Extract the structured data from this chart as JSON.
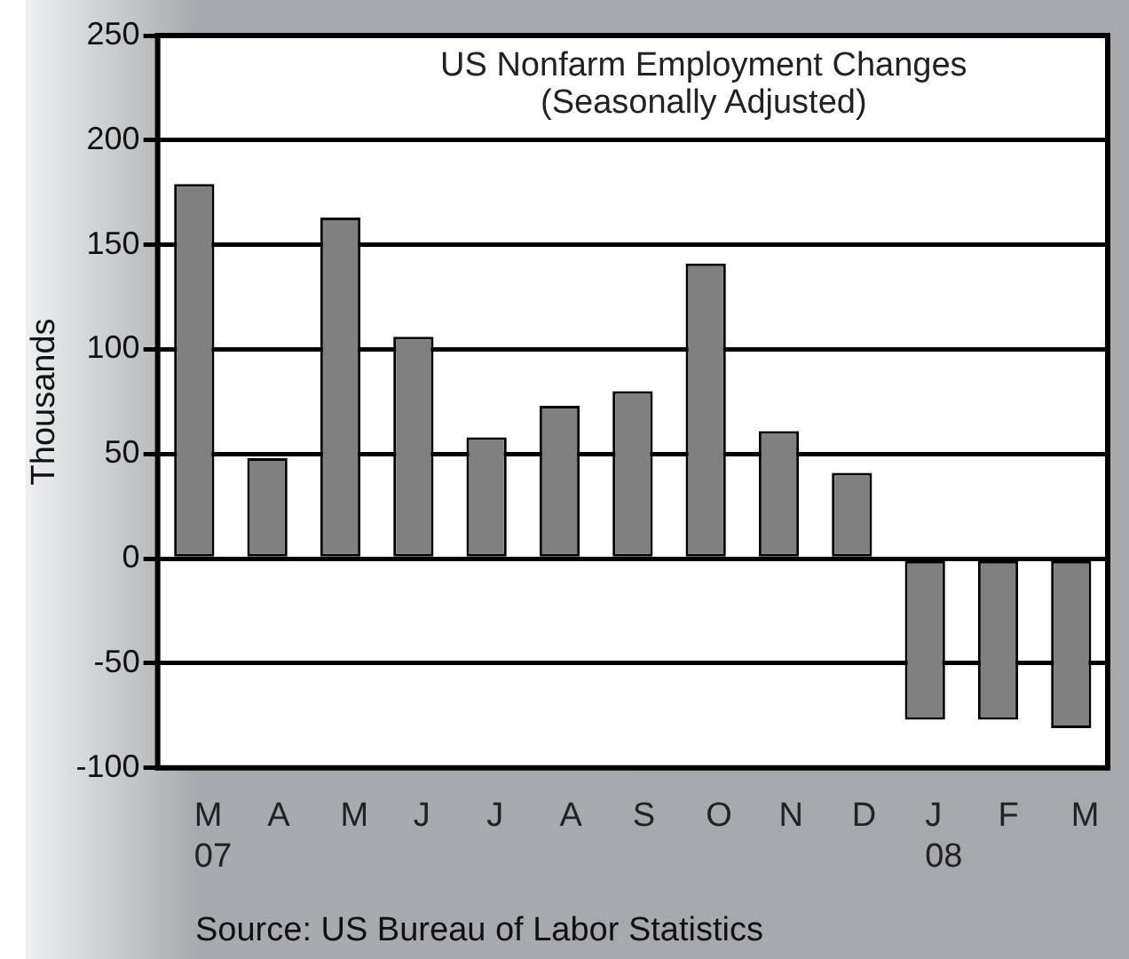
{
  "chart_data": {
    "type": "bar",
    "title": "US Nonfarm Employment Changes\n(Seasonally Adjusted)",
    "ylabel": "Thousands",
    "categories": [
      "M\n07",
      "A",
      "M",
      "J",
      "J",
      "A",
      "S",
      "O",
      "N",
      "D",
      "J\n08",
      "F",
      "M"
    ],
    "values": [
      179,
      48,
      163,
      106,
      58,
      73,
      80,
      141,
      61,
      41,
      -77,
      -77,
      -81
    ],
    "color": "#808080",
    "ylim": [
      -100,
      250
    ],
    "yticks": [
      -100,
      -50,
      0,
      50,
      100,
      150,
      200,
      250
    ],
    "grid": "y",
    "annotations": [
      "Source: US Bureau of Labor Statistics"
    ]
  }
}
